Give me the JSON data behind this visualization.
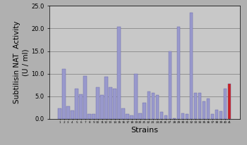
{
  "values": [
    2.3,
    11.0,
    2.8,
    1.8,
    6.7,
    5.5,
    9.5,
    1.1,
    1.0,
    7.0,
    5.2,
    9.4,
    7.0,
    6.7,
    20.3,
    2.3,
    1.0,
    0.7,
    10.0,
    1.2,
    3.6,
    6.0,
    5.8,
    5.3,
    1.5,
    0.8,
    15.0,
    0.2,
    20.3,
    1.2,
    1.0,
    23.5,
    5.8,
    5.8,
    3.8,
    4.5,
    1.1,
    2.0,
    1.7,
    6.7,
    7.8
  ],
  "bar_color": "#9999cc",
  "last_bar_color": "#cc2222",
  "background_color": "#b0b0b0",
  "plot_bg_color": "#c8c8c8",
  "ylim": [
    0,
    25.0
  ],
  "yticks": [
    0.0,
    5.0,
    10.0,
    15.0,
    20.0,
    25.0
  ],
  "ylabel": "Subtilisin NAT  Activity\n(U / ml)",
  "xlabel": "Strains",
  "grid_color": "#888888",
  "tick_fontsize": 6,
  "label_fontsize": 7.5
}
